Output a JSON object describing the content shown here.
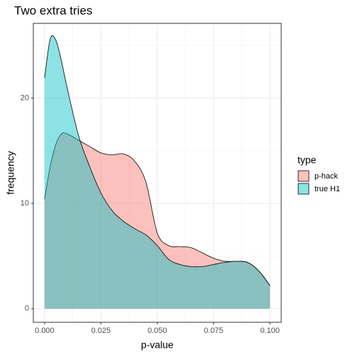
{
  "chart_data": {
    "type": "area",
    "title": "Two extra tries",
    "x_label": "p-value",
    "y_label": "frequency",
    "legend_title": "type",
    "x": [
      0,
      0.0025,
      0.005,
      0.0075,
      0.01,
      0.015,
      0.02,
      0.025,
      0.03,
      0.035,
      0.04,
      0.045,
      0.05,
      0.055,
      0.06,
      0.065,
      0.07,
      0.075,
      0.08,
      0.085,
      0.09,
      0.095,
      0.1
    ],
    "series": [
      {
        "name": "p-hack",
        "color": "#F8766D",
        "values": [
          10.4,
          13.5,
          15.6,
          16.6,
          16.6,
          16.0,
          15.4,
          14.8,
          14.6,
          14.7,
          14.0,
          12.0,
          7.2,
          6.0,
          5.9,
          5.8,
          5.3,
          4.8,
          4.5,
          4.5,
          4.4,
          3.6,
          2.2
        ]
      },
      {
        "name": "true H1",
        "color": "#00BFC4",
        "values": [
          21.9,
          25.6,
          25.5,
          23.5,
          21.0,
          16.5,
          13.5,
          11.0,
          9.3,
          8.3,
          7.6,
          7.0,
          6.0,
          4.7,
          4.2,
          4.0,
          4.0,
          4.2,
          4.4,
          4.5,
          4.4,
          3.6,
          2.2
        ]
      }
    ],
    "xlim": [
      -0.005,
      0.105
    ],
    "ylim": [
      -1.29,
      27.09
    ],
    "xticks": [
      {
        "value": 0,
        "label": "0.000"
      },
      0.025,
      {
        "value": 0.05,
        "label": "0.050"
      },
      0.075,
      {
        "value": 0.1,
        "label": "0.100"
      }
    ],
    "yticks": [
      0,
      10,
      20
    ],
    "x_minor_ticks": [
      0.0125,
      0.0375,
      0.0625,
      0.0875
    ],
    "y_minor_ticks": [
      5,
      15,
      25
    ],
    "grid": true,
    "legend": "right"
  }
}
